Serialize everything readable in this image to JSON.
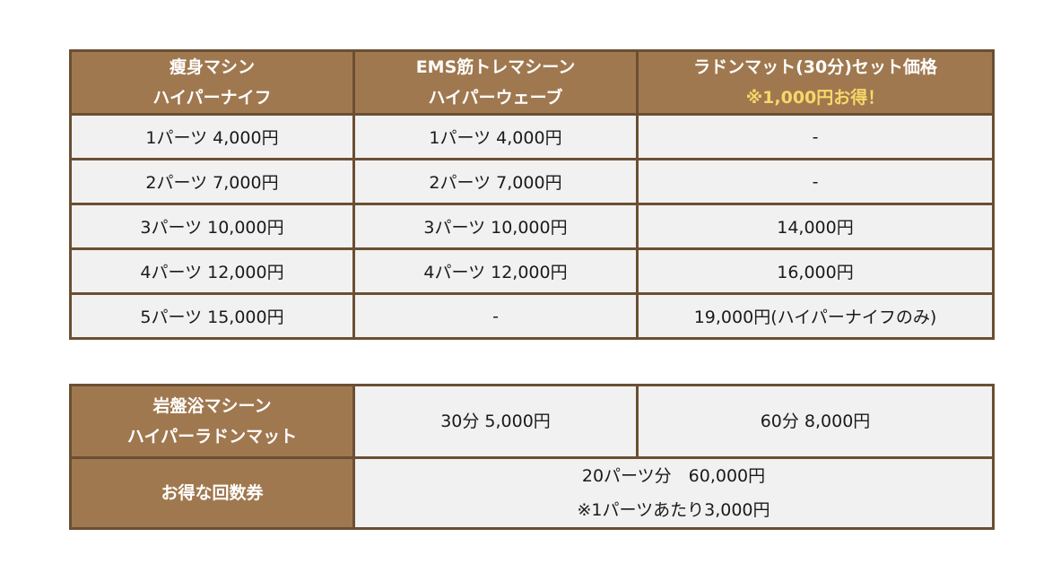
{
  "price_table": {
    "headers": [
      {
        "line1": "瘦身マシン",
        "line2": "ハイパーナイフ"
      },
      {
        "line1": "EMS筋トレマシーン",
        "line2": "ハイパーウェーブ"
      },
      {
        "line1": "ラドンマット(30分)セット価格",
        "line2": "※1,000円お得！"
      }
    ],
    "rows": [
      [
        "1パーツ 4,000円",
        "1パーツ 4,000円",
        "-"
      ],
      [
        "2パーツ 7,000円",
        "2パーツ 7,000円",
        "-"
      ],
      [
        "3パーツ 10,000円",
        "3パーツ 10,000円",
        "14,000円"
      ],
      [
        "4パーツ 12,000円",
        "4パーツ 12,000円",
        "16,000円"
      ],
      [
        "5パーツ 15,000円",
        "-",
        "19,000円(ハイパーナイフのみ)"
      ]
    ]
  },
  "radon_table": {
    "label_line1": "岩盤浴マシーン",
    "label_line2": "ハイパーラドンマット",
    "price_30": "30分 5,000円",
    "price_60": "60分 8,000円",
    "ticket_label": "お得な回数券",
    "ticket_line1": "20パーツ分　60,000円",
    "ticket_line2": "※1パーツあたり3,000円"
  },
  "colors": {
    "header_bg": "#a0784f",
    "border": "#6b4f33",
    "cell_bg": "#f1f1f1",
    "accent_text": "#f6d86a"
  }
}
